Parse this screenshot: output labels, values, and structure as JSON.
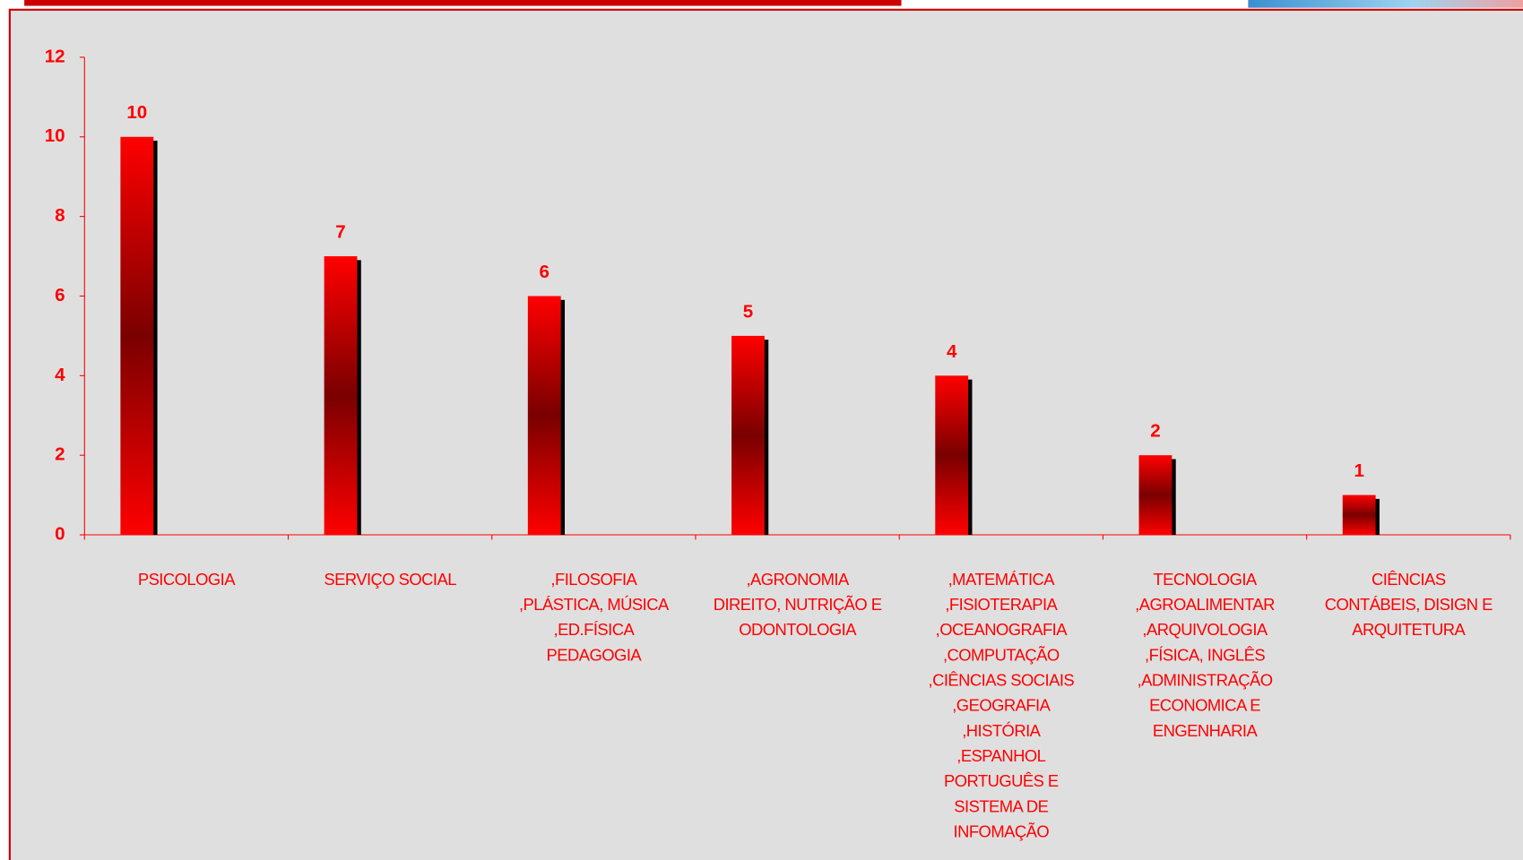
{
  "chart_data": {
    "type": "bar",
    "categories": [
      [
        "PSICOLOGIA"
      ],
      [
        "SERVIÇO SOCIAL"
      ],
      [
        ",FILOSOFIA",
        ",PLÁSTICA, MÚSICA",
        ",ED.FÍSICA",
        "PEDAGOGIA"
      ],
      [
        ",AGRONOMIA",
        "DIREITO, NUTRIÇÃO E",
        "ODONTOLOGIA"
      ],
      [
        ",MATEMÁTICA",
        ",FISIOTERAPIA",
        ",OCEANOGRAFIA",
        ",COMPUTAÇÃO",
        ",CIÊNCIAS SOCIAIS",
        ",GEOGRAFIA",
        ",HISTÓRIA",
        ",ESPANHOL",
        "PORTUGUÊS E",
        "SISTEMA DE",
        "INFOMAÇÃO"
      ],
      [
        "TECNOLOGIA",
        ",AGROALIMENTAR",
        ",ARQUIVOLOGIA",
        ",FÍSICA, INGLÊS",
        ",ADMINISTRAÇÃO",
        "ECONOMICA E",
        "ENGENHARIA"
      ],
      [
        "CIÊNCIAS",
        "CONTÁBEIS, DISIGN E",
        "ARQUITETURA"
      ]
    ],
    "values": [
      10,
      7,
      6,
      5,
      4,
      2,
      1
    ],
    "color": "#ff0000",
    "ylim": [
      0,
      12
    ],
    "yticks": [
      0,
      2,
      4,
      6,
      8,
      10,
      12
    ]
  }
}
